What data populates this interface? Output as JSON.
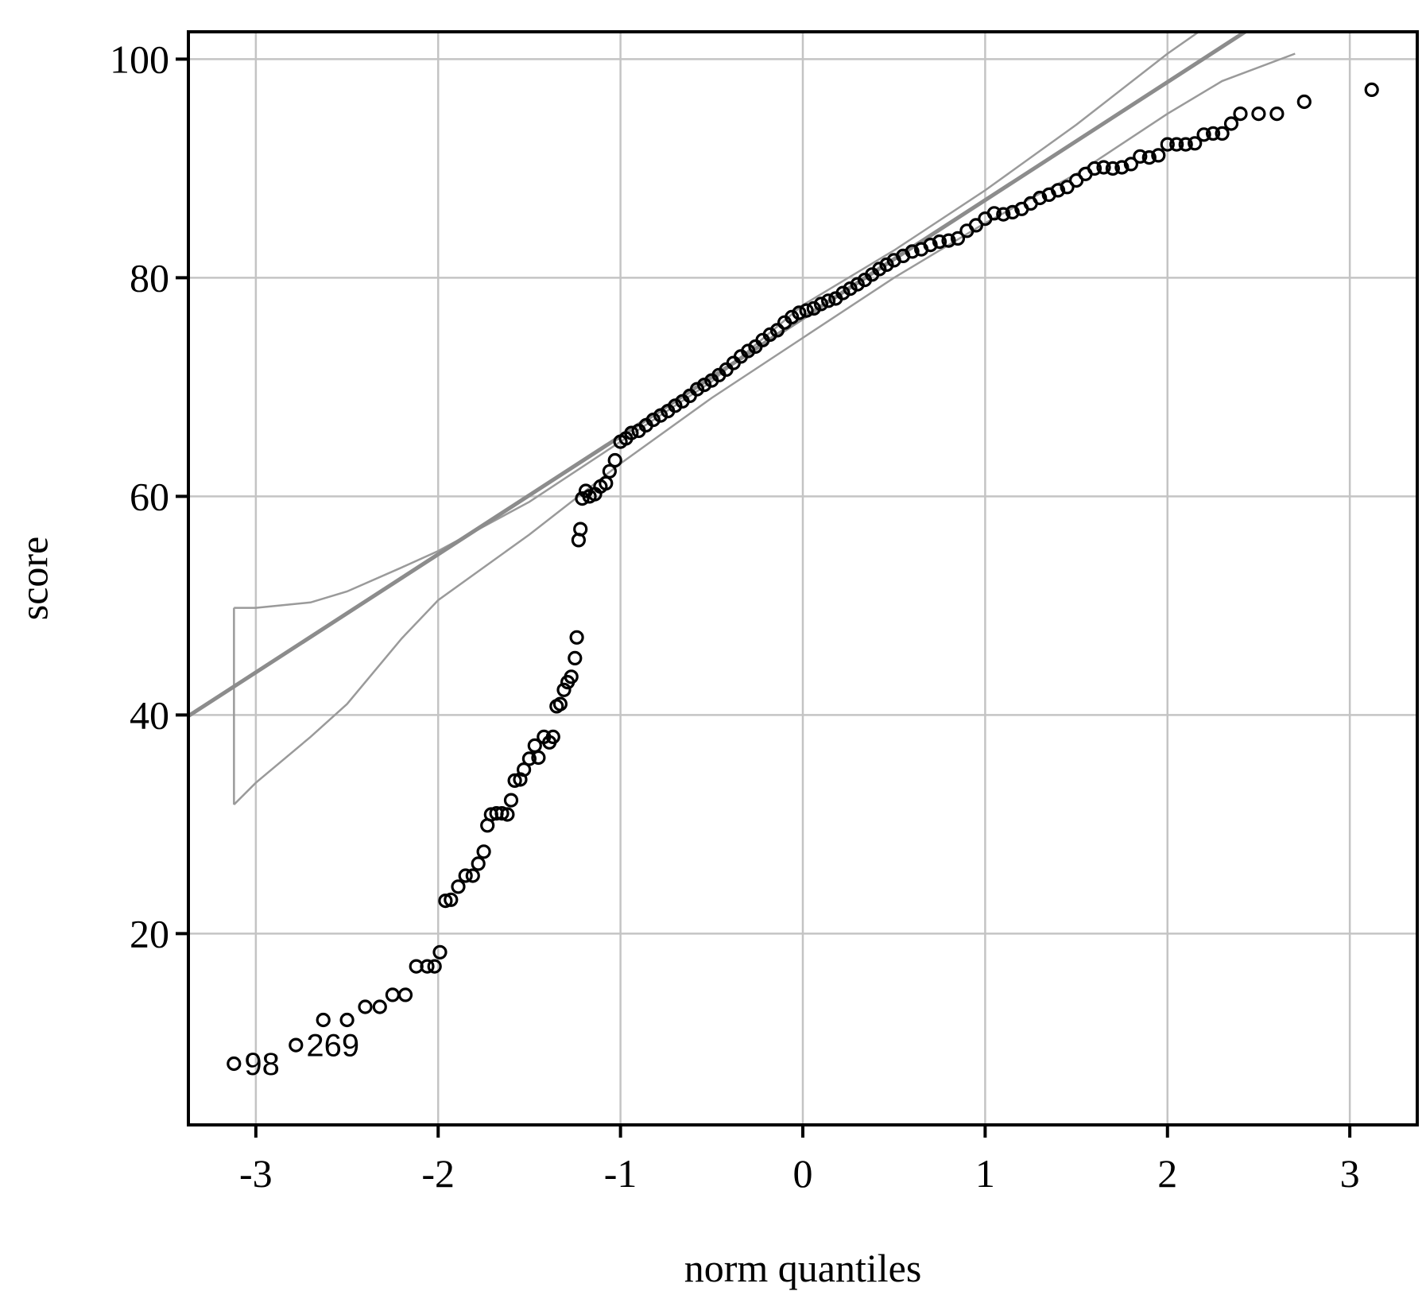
{
  "chart_data": {
    "type": "scatter",
    "title": "",
    "xlabel": "norm quantiles",
    "ylabel": "score",
    "xlim": [
      -3.37,
      3.37
    ],
    "ylim": [
      2.5,
      102.5
    ],
    "xticks": [
      -3,
      -2,
      -1,
      0,
      1,
      2,
      3
    ],
    "yticks": [
      20,
      40,
      60,
      80,
      100
    ],
    "grid": true,
    "reference_line": {
      "intercept": 76.3,
      "slope": 10.8
    },
    "envelope": {
      "upper": [
        [
          -3.12,
          49.8
        ],
        [
          -3.0,
          49.8
        ],
        [
          -2.7,
          50.3
        ],
        [
          -2.5,
          51.3
        ],
        [
          -2.2,
          53.5
        ],
        [
          -2.0,
          55.0
        ],
        [
          -1.5,
          59.5
        ],
        [
          -1.0,
          65.0
        ],
        [
          -0.5,
          70.5
        ],
        [
          0.0,
          77.5
        ],
        [
          0.5,
          82.5
        ],
        [
          1.0,
          88.0
        ],
        [
          1.5,
          94.0
        ],
        [
          2.0,
          100.5
        ],
        [
          2.3,
          104.0
        ]
      ],
      "lower": [
        [
          -3.12,
          31.8
        ],
        [
          -3.0,
          33.8
        ],
        [
          -2.7,
          38.0
        ],
        [
          -2.5,
          41.0
        ],
        [
          -2.2,
          47.0
        ],
        [
          -2.0,
          50.5
        ],
        [
          -1.5,
          56.5
        ],
        [
          -1.0,
          63.0
        ],
        [
          -0.5,
          69.0
        ],
        [
          0.0,
          74.5
        ],
        [
          0.5,
          80.0
        ],
        [
          1.0,
          85.0
        ],
        [
          1.5,
          89.5
        ],
        [
          2.0,
          95.0
        ],
        [
          2.3,
          98.0
        ],
        [
          2.7,
          100.5
        ]
      ]
    },
    "points": [
      [
        -3.12,
        8.1
      ],
      [
        -2.78,
        9.8
      ],
      [
        -2.63,
        12.1
      ],
      [
        -2.5,
        12.1
      ],
      [
        -2.4,
        13.3
      ],
      [
        -2.32,
        13.3
      ],
      [
        -2.25,
        14.4
      ],
      [
        -2.18,
        14.4
      ],
      [
        -2.12,
        17.0
      ],
      [
        -2.06,
        17.0
      ],
      [
        -2.02,
        17.0
      ],
      [
        -1.99,
        18.3
      ],
      [
        -1.96,
        23.0
      ],
      [
        -1.93,
        23.1
      ],
      [
        -1.89,
        24.3
      ],
      [
        -1.85,
        25.3
      ],
      [
        -1.81,
        25.3
      ],
      [
        -1.78,
        26.4
      ],
      [
        -1.75,
        27.5
      ],
      [
        -1.73,
        29.9
      ],
      [
        -1.71,
        30.9
      ],
      [
        -1.68,
        31.0
      ],
      [
        -1.65,
        31.0
      ],
      [
        -1.62,
        30.9
      ],
      [
        -1.6,
        32.2
      ],
      [
        -1.58,
        34.0
      ],
      [
        -1.55,
        34.1
      ],
      [
        -1.53,
        35.0
      ],
      [
        -1.5,
        36.0
      ],
      [
        -1.47,
        37.2
      ],
      [
        -1.45,
        36.1
      ],
      [
        -1.42,
        38.0
      ],
      [
        -1.39,
        37.5
      ],
      [
        -1.37,
        38.0
      ],
      [
        -1.35,
        40.8
      ],
      [
        -1.33,
        41.0
      ],
      [
        -1.31,
        42.3
      ],
      [
        -1.29,
        43.0
      ],
      [
        -1.27,
        43.5
      ],
      [
        -1.25,
        45.2
      ],
      [
        -1.24,
        47.1
      ],
      [
        -1.23,
        56.0
      ],
      [
        -1.22,
        57.0
      ],
      [
        -1.21,
        59.8
      ],
      [
        -1.19,
        60.5
      ],
      [
        -1.17,
        60.0
      ],
      [
        -1.14,
        60.2
      ],
      [
        -1.11,
        60.9
      ],
      [
        -1.08,
        61.2
      ],
      [
        -1.06,
        62.3
      ],
      [
        -1.03,
        63.3
      ],
      [
        -1.0,
        65.0
      ],
      [
        -0.97,
        65.3
      ],
      [
        -0.94,
        65.8
      ],
      [
        -0.9,
        66.0
      ],
      [
        -0.86,
        66.5
      ],
      [
        -0.82,
        67.0
      ],
      [
        -0.78,
        67.4
      ],
      [
        -0.74,
        67.8
      ],
      [
        -0.7,
        68.3
      ],
      [
        -0.66,
        68.7
      ],
      [
        -0.62,
        69.2
      ],
      [
        -0.58,
        69.8
      ],
      [
        -0.54,
        70.2
      ],
      [
        -0.5,
        70.6
      ],
      [
        -0.46,
        71.1
      ],
      [
        -0.42,
        71.6
      ],
      [
        -0.38,
        72.2
      ],
      [
        -0.34,
        72.8
      ],
      [
        -0.3,
        73.3
      ],
      [
        -0.26,
        73.7
      ],
      [
        -0.22,
        74.3
      ],
      [
        -0.18,
        74.8
      ],
      [
        -0.14,
        75.2
      ],
      [
        -0.1,
        75.9
      ],
      [
        -0.06,
        76.4
      ],
      [
        -0.02,
        76.8
      ],
      [
        0.02,
        77.0
      ],
      [
        0.06,
        77.2
      ],
      [
        0.1,
        77.6
      ],
      [
        0.14,
        77.9
      ],
      [
        0.18,
        78.1
      ],
      [
        0.22,
        78.6
      ],
      [
        0.26,
        79.0
      ],
      [
        0.3,
        79.4
      ],
      [
        0.34,
        79.8
      ],
      [
        0.38,
        80.3
      ],
      [
        0.42,
        80.8
      ],
      [
        0.46,
        81.2
      ],
      [
        0.5,
        81.6
      ],
      [
        0.55,
        82.0
      ],
      [
        0.6,
        82.4
      ],
      [
        0.65,
        82.6
      ],
      [
        0.7,
        83.0
      ],
      [
        0.75,
        83.3
      ],
      [
        0.8,
        83.4
      ],
      [
        0.85,
        83.6
      ],
      [
        0.9,
        84.3
      ],
      [
        0.95,
        84.8
      ],
      [
        1.0,
        85.4
      ],
      [
        1.05,
        85.9
      ],
      [
        1.1,
        85.8
      ],
      [
        1.15,
        86.0
      ],
      [
        1.2,
        86.3
      ],
      [
        1.25,
        86.8
      ],
      [
        1.3,
        87.3
      ],
      [
        1.35,
        87.6
      ],
      [
        1.4,
        88.0
      ],
      [
        1.45,
        88.3
      ],
      [
        1.5,
        88.9
      ],
      [
        1.55,
        89.5
      ],
      [
        1.6,
        90.0
      ],
      [
        1.65,
        90.1
      ],
      [
        1.7,
        90.0
      ],
      [
        1.75,
        90.1
      ],
      [
        1.8,
        90.4
      ],
      [
        1.85,
        91.1
      ],
      [
        1.9,
        91.0
      ],
      [
        1.95,
        91.2
      ],
      [
        2.0,
        92.2
      ],
      [
        2.05,
        92.2
      ],
      [
        2.1,
        92.2
      ],
      [
        2.15,
        92.3
      ],
      [
        2.2,
        93.1
      ],
      [
        2.25,
        93.2
      ],
      [
        2.3,
        93.2
      ],
      [
        2.35,
        94.1
      ],
      [
        2.4,
        95.0
      ],
      [
        2.5,
        95.0
      ],
      [
        2.6,
        95.0
      ],
      [
        2.75,
        96.1
      ],
      [
        3.12,
        97.2
      ]
    ],
    "point_labels": [
      {
        "text": "98",
        "x": -3.12,
        "y": 8.1
      },
      {
        "text": "269",
        "x": -2.78,
        "y": 9.8
      }
    ]
  }
}
